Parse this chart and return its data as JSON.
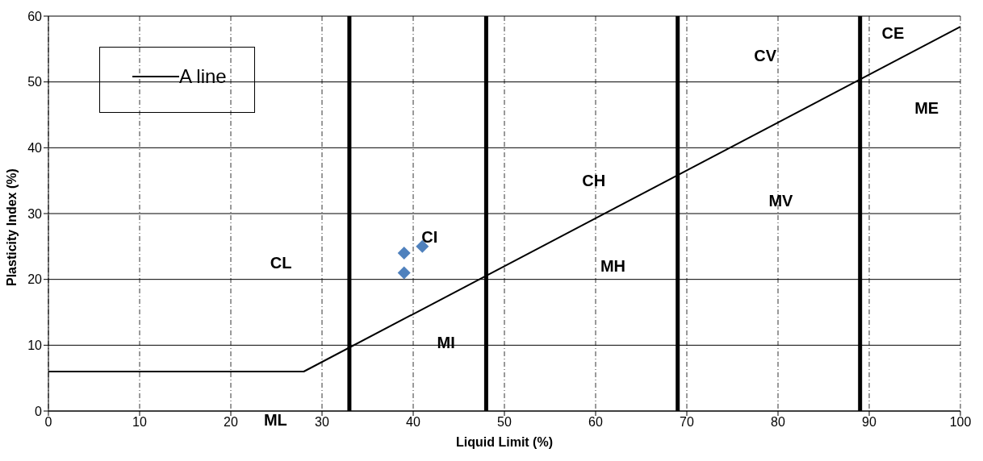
{
  "chart_data": {
    "type": "scatter",
    "xlabel": "Liquid Limit (%)",
    "ylabel": "Plasticity Index (%)",
    "xlim": [
      0,
      100
    ],
    "xticks": [
      0,
      10,
      20,
      30,
      40,
      50,
      60,
      70,
      80,
      90,
      100
    ],
    "ylim": [
      0,
      60
    ],
    "yticks": [
      0,
      10,
      20,
      30,
      40,
      50,
      60
    ],
    "grid": true,
    "legend": "top left",
    "series": [
      {
        "name": "A line",
        "type": "line",
        "color": "#000000",
        "x": [
          0,
          28,
          100
        ],
        "values": [
          6,
          6,
          58.4
        ],
        "marker": "none",
        "line_style": "solid"
      },
      {
        "color": "#4f81bd",
        "x": [
          39,
          39,
          41
        ],
        "values": [
          24,
          21,
          25
        ],
        "marker": "diamond"
      }
    ],
    "ref_lines": [
      {
        "axis": "x",
        "value": 33,
        "color": "#000000"
      },
      {
        "axis": "x",
        "value": 48,
        "color": "#000000"
      },
      {
        "axis": "x",
        "value": 69,
        "color": "#000000"
      },
      {
        "axis": "x",
        "value": 89,
        "color": "#000000"
      }
    ],
    "annotations": [
      "CL",
      "CI",
      "CH",
      "CV",
      "CE",
      "ME",
      "MV",
      "MH",
      "MI",
      "ML"
    ]
  }
}
